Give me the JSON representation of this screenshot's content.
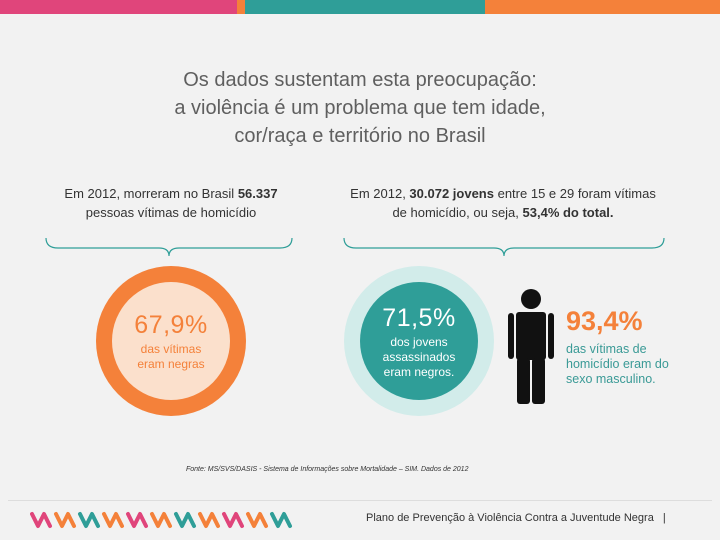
{
  "colors": {
    "orange": "#f4813a",
    "teal": "#2f9e98",
    "pink": "#e0457b",
    "peach": "#fbe0cc",
    "mint": "#d2ecea",
    "dark": "#111111"
  },
  "header": {
    "bar_colors": [
      "#e0457b",
      "#f4813a",
      "#2f9e98",
      "#f4813a"
    ]
  },
  "title": {
    "line1": "Os dados sustentam esta preocupação:",
    "line2": "a violência é um problema que tem idade,",
    "line3": "cor/raça e território no Brasil"
  },
  "left_caption": {
    "part1": "Em 2012, morreram no Brasil ",
    "bold": "56.337",
    "part2": "pessoas vítimas de homicídio"
  },
  "right_caption": {
    "part1": "Em 2012, ",
    "bold1": "30.072 jovens",
    "part2": " entre 15 e 29 foram vítimas de homicídio, ou seja, ",
    "bold2": "53,4% do total."
  },
  "stat_black": {
    "value": "67,9%",
    "label_line1": "das vítimas",
    "label_line2": "eram negras"
  },
  "stat_youth": {
    "value": "71,5%",
    "label_line1": "dos jovens",
    "label_line2": "assassinados",
    "label_line3": "eram negros."
  },
  "stat_male": {
    "value": "93,4%",
    "label_line1": "das vítimas de",
    "label_line2": "homicídio eram do",
    "label_line3": "sexo masculino.",
    "icon": "man-icon"
  },
  "source": "Fonte: MS/SVS/DASIS - Sistema de Informações sobre Mortalidade – SIM. Dados de 2012",
  "footer": {
    "text": "Plano de Prevenção à Violência Contra a Juventude Negra",
    "separator": "|",
    "logo_icon": "zigzag-logo-icon"
  }
}
